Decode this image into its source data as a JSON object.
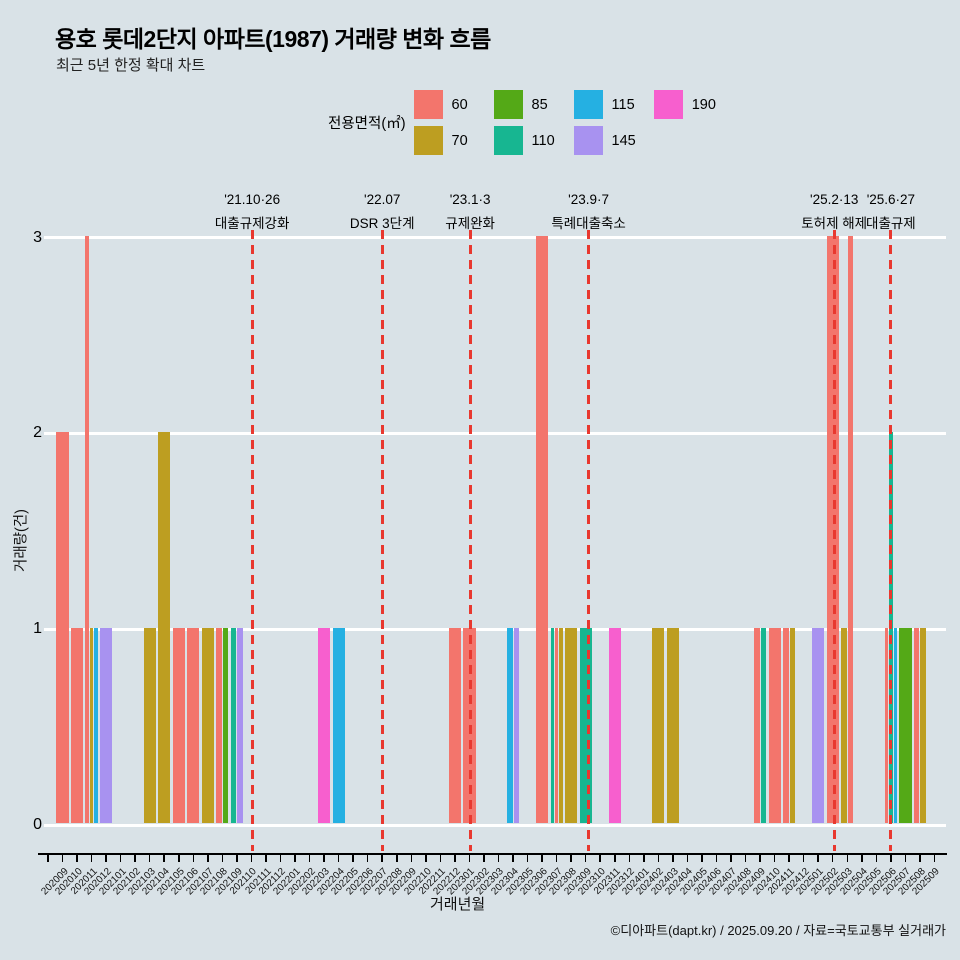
{
  "title": "용호 롯데2단지 아파트(1987) 거래량 변화 흐름",
  "subtitle": "최근 5년 한정 확대 차트",
  "legend": {
    "title": "전용면적(㎡)",
    "items": [
      {
        "label": "60",
        "color": "#f3756c"
      },
      {
        "label": "70",
        "color": "#bd9e21"
      },
      {
        "label": "85",
        "color": "#54a917"
      },
      {
        "label": "110",
        "color": "#17b691"
      },
      {
        "label": "115",
        "color": "#25b0e2"
      },
      {
        "label": "145",
        "color": "#a892f0"
      },
      {
        "label": "190",
        "color": "#f75fce"
      }
    ]
  },
  "chart_data": {
    "type": "bar",
    "title": "용호 롯데2단지 아파트(1987) 거래량 변화 흐름",
    "xlabel": "거래년월",
    "ylabel": "거래량(건)",
    "yticks": [
      0,
      1,
      2,
      3
    ],
    "ylim": [
      0,
      3
    ],
    "grid": "white horizontal lines",
    "legend_position": "top",
    "months": [
      "202009",
      "202010",
      "202011",
      "202012",
      "202101",
      "202102",
      "202103",
      "202104",
      "202105",
      "202106",
      "202107",
      "202108",
      "202109",
      "202110",
      "202111",
      "202112",
      "202201",
      "202202",
      "202203",
      "202204",
      "202205",
      "202206",
      "202207",
      "202208",
      "202209",
      "202210",
      "202211",
      "202212",
      "202301",
      "202302",
      "202303",
      "202304",
      "202305",
      "202306",
      "202307",
      "202308",
      "202309",
      "202310",
      "202311",
      "202312",
      "202401",
      "202402",
      "202403",
      "202404",
      "202405",
      "202406",
      "202407",
      "202408",
      "202409",
      "202410",
      "202411",
      "202412",
      "202501",
      "202502",
      "202503",
      "202504",
      "202505",
      "202506",
      "202507",
      "202508",
      "202509"
    ],
    "area_colors": {
      "60": "#f3756c",
      "70": "#bd9e21",
      "85": "#54a917",
      "110": "#17b691",
      "115": "#25b0e2",
      "145": "#a892f0",
      "190": "#f75fce"
    },
    "bars": [
      {
        "month": "202009",
        "area": "60",
        "count": 2
      },
      {
        "month": "202010",
        "area": "60",
        "count": 1
      },
      {
        "month": "202011",
        "area": "60",
        "count": 3
      },
      {
        "month": "202011",
        "area": "70",
        "count": 1
      },
      {
        "month": "202011",
        "area": "115",
        "count": 1
      },
      {
        "month": "202012",
        "area": "145",
        "count": 1
      },
      {
        "month": "202103",
        "area": "70",
        "count": 1
      },
      {
        "month": "202104",
        "area": "70",
        "count": 2
      },
      {
        "month": "202105",
        "area": "60",
        "count": 1
      },
      {
        "month": "202106",
        "area": "60",
        "count": 1
      },
      {
        "month": "202107",
        "area": "70",
        "count": 1
      },
      {
        "month": "202108",
        "area": "60",
        "count": 1
      },
      {
        "month": "202108",
        "area": "85",
        "count": 1
      },
      {
        "month": "202109",
        "area": "110",
        "count": 1
      },
      {
        "month": "202109",
        "area": "145",
        "count": 1
      },
      {
        "month": "202203",
        "area": "190",
        "count": 1
      },
      {
        "month": "202204",
        "area": "115",
        "count": 1
      },
      {
        "month": "202212",
        "area": "60",
        "count": 1
      },
      {
        "month": "202301",
        "area": "60",
        "count": 1
      },
      {
        "month": "202304",
        "area": "115",
        "count": 1
      },
      {
        "month": "202304",
        "area": "145",
        "count": 1
      },
      {
        "month": "202306",
        "area": "60",
        "count": 3
      },
      {
        "month": "202307",
        "area": "110",
        "count": 1
      },
      {
        "month": "202307",
        "area": "60",
        "count": 1
      },
      {
        "month": "202307",
        "area": "70",
        "count": 1
      },
      {
        "month": "202308",
        "area": "70",
        "count": 1
      },
      {
        "month": "202309",
        "area": "110",
        "count": 1
      },
      {
        "month": "202311",
        "area": "190",
        "count": 1
      },
      {
        "month": "202402",
        "area": "70",
        "count": 1
      },
      {
        "month": "202403",
        "area": "70",
        "count": 1
      },
      {
        "month": "202409",
        "area": "60",
        "count": 1
      },
      {
        "month": "202409",
        "area": "110",
        "count": 1
      },
      {
        "month": "202410",
        "area": "60",
        "count": 1
      },
      {
        "month": "202411",
        "area": "60",
        "count": 1
      },
      {
        "month": "202411",
        "area": "70",
        "count": 1
      },
      {
        "month": "202501",
        "area": "145",
        "count": 1
      },
      {
        "month": "202502",
        "area": "60",
        "count": 3
      },
      {
        "month": "202503",
        "area": "70",
        "count": 1
      },
      {
        "month": "202503",
        "area": "60",
        "count": 3
      },
      {
        "month": "202506",
        "area": "60",
        "count": 1
      },
      {
        "month": "202506",
        "area": "110",
        "count": 2
      },
      {
        "month": "202506",
        "area": "115",
        "count": 1
      },
      {
        "month": "202507",
        "area": "85",
        "count": 1
      },
      {
        "month": "202508",
        "area": "60",
        "count": 1
      },
      {
        "month": "202508",
        "area": "70",
        "count": 1
      }
    ],
    "events": [
      {
        "pos": 13.05,
        "date": "'21.10·26",
        "label": "대출규제강화"
      },
      {
        "pos": 22.0,
        "date": "'22.07",
        "label": "DSR 3단계"
      },
      {
        "pos": 28.05,
        "date": "'23.1·3",
        "label": "규제완화"
      },
      {
        "pos": 36.2,
        "date": "'23.9·7",
        "label": "특례대출축소"
      },
      {
        "pos": 53.1,
        "date": "'25.2·13",
        "label": "토허제 해제"
      },
      {
        "pos": 57.0,
        "date": "'25.6·27",
        "label": "대출규제"
      }
    ],
    "event_line_color": "#e8382f"
  },
  "footer": "©디아파트(dapt.kr) / 2025.09.20 / 자료=국토교통부 실거래가"
}
